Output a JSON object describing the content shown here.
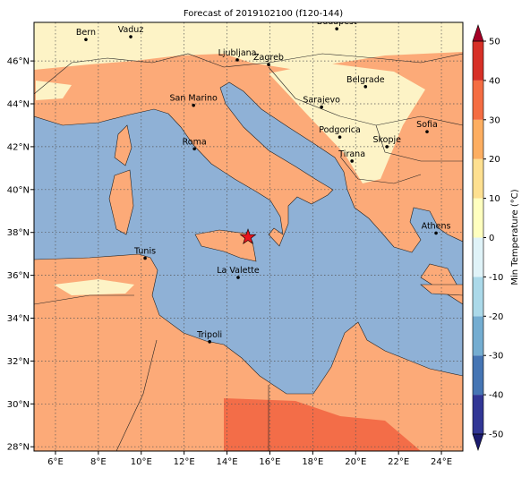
{
  "title": "Forecast of 2019102100 (f120-144)",
  "map": {
    "lonlim": [
      5,
      25
    ],
    "latlim": [
      27.8,
      47.8
    ],
    "lon_ticks": [
      {
        "value": 6,
        "label": "6°E"
      },
      {
        "value": 8,
        "label": "8°E"
      },
      {
        "value": 10,
        "label": "10°E"
      },
      {
        "value": 12,
        "label": "12°E"
      },
      {
        "value": 14,
        "label": "14°E"
      },
      {
        "value": 16,
        "label": "16°E"
      },
      {
        "value": 18,
        "label": "18°E"
      },
      {
        "value": 20,
        "label": "20°E"
      },
      {
        "value": 22,
        "label": "22°E"
      },
      {
        "value": 24,
        "label": "24°E"
      }
    ],
    "lat_ticks": [
      {
        "value": 28,
        "label": "28°N"
      },
      {
        "value": 30,
        "label": "30°N"
      },
      {
        "value": 32,
        "label": "32°N"
      },
      {
        "value": 34,
        "label": "34°N"
      },
      {
        "value": 36,
        "label": "36°N"
      },
      {
        "value": 38,
        "label": "38°N"
      },
      {
        "value": 40,
        "label": "40°N"
      },
      {
        "value": 42,
        "label": "42°N"
      },
      {
        "value": 44,
        "label": "44°N"
      },
      {
        "value": 46,
        "label": "46°N"
      }
    ],
    "grid": true,
    "cities": [
      {
        "name": "Bern",
        "lon": 7.42,
        "lat": 47.0
      },
      {
        "name": "Vaduz",
        "lon": 9.51,
        "lat": 47.13
      },
      {
        "name": "Budapest",
        "lon": 19.12,
        "lat": 47.5
      },
      {
        "name": "Ljubljana",
        "lon": 14.48,
        "lat": 46.05
      },
      {
        "name": "Zagreb",
        "lon": 15.94,
        "lat": 45.83
      },
      {
        "name": "Belgrade",
        "lon": 20.46,
        "lat": 44.8
      },
      {
        "name": "Sarajevo",
        "lon": 18.41,
        "lat": 43.85
      },
      {
        "name": "San Marino",
        "lon": 12.44,
        "lat": 43.93
      },
      {
        "name": "Sofia",
        "lon": 23.33,
        "lat": 42.7
      },
      {
        "name": "Podgorica",
        "lon": 19.26,
        "lat": 42.45
      },
      {
        "name": "Skopje",
        "lon": 21.46,
        "lat": 42.0
      },
      {
        "name": "Roma",
        "lon": 12.48,
        "lat": 41.9
      },
      {
        "name": "Tirana",
        "lon": 19.83,
        "lat": 41.33
      },
      {
        "name": "Athens",
        "lon": 23.75,
        "lat": 37.97
      },
      {
        "name": "Tunis",
        "lon": 10.18,
        "lat": 36.8
      },
      {
        "name": "La Valette",
        "lon": 14.52,
        "lat": 35.9
      },
      {
        "name": "Tripoli",
        "lon": 13.19,
        "lat": 32.9
      }
    ],
    "marker": {
      "lon": 14.98,
      "lat": 37.78,
      "color": "#e8141c"
    }
  },
  "colorbar": {
    "label": "Min Temperature (°C)",
    "ticks": [
      -50,
      -40,
      -30,
      -20,
      -10,
      0,
      10,
      20,
      30,
      40,
      50
    ],
    "colors": [
      "#313695",
      "#4575b4",
      "#74add1",
      "#abd9e9",
      "#e0f3f8",
      "#ffffbf",
      "#fee090",
      "#fdae61",
      "#f46d43",
      "#d73027"
    ],
    "extend_colors": [
      "#1b1b6e",
      "#a50026"
    ]
  }
}
